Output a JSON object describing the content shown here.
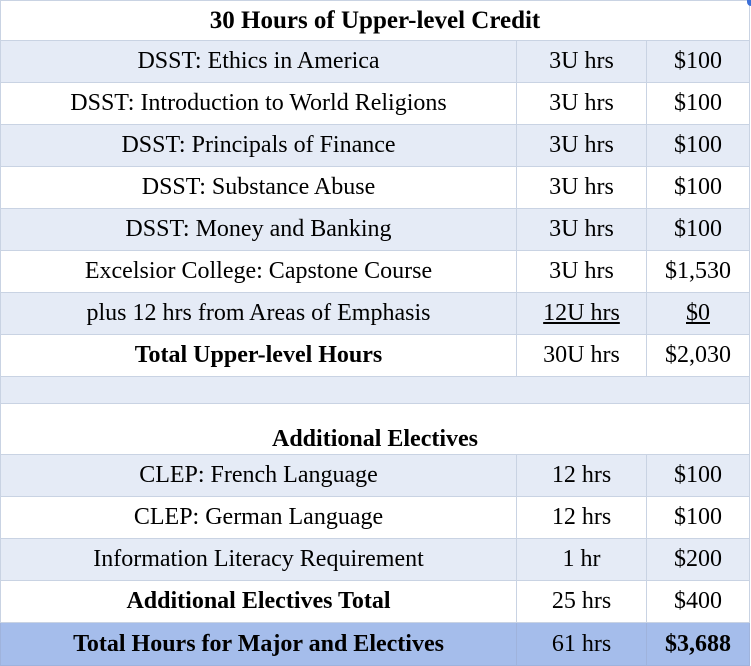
{
  "upper": {
    "title": "30 Hours of Upper-level Credit",
    "rows": [
      {
        "course": "DSST:  Ethics in America",
        "hours": "3U hrs",
        "cost": "$100"
      },
      {
        "course": "DSST:  Introduction to World Religions",
        "hours": "3U hrs",
        "cost": "$100"
      },
      {
        "course": "DSST:  Principals of Finance",
        "hours": "3U hrs",
        "cost": "$100"
      },
      {
        "course": "DSST:  Substance Abuse",
        "hours": "3U hrs",
        "cost": "$100"
      },
      {
        "course": "DSST:  Money and Banking",
        "hours": "3U hrs",
        "cost": "$100"
      },
      {
        "course": "Excelsior College:  Capstone Course",
        "hours": "3U hrs",
        "cost": "$1,530"
      },
      {
        "course": "plus 12 hrs from Areas of Emphasis",
        "hours": "12U hrs",
        "cost": "$0"
      }
    ],
    "total": {
      "label": "Total Upper-level Hours",
      "hours": "30U hrs",
      "cost": "$2,030"
    }
  },
  "electives": {
    "title": "Additional Electives",
    "rows": [
      {
        "course": "CLEP:  French Language",
        "hours": "12 hrs",
        "cost": "$100"
      },
      {
        "course": "CLEP:  German Language",
        "hours": "12 hrs",
        "cost": "$100"
      },
      {
        "course": "Information Literacy Requirement",
        "hours": "1 hr",
        "cost": "$200"
      }
    ],
    "total": {
      "label": "Additional Electives Total",
      "hours": "25 hrs",
      "cost": "$400"
    }
  },
  "grand_total": {
    "label": "Total Hours for Major and Electives",
    "hours": "61 hrs",
    "cost": "$3,688"
  },
  "colors": {
    "row_shade": "#e5ebf6",
    "grand_total_bg": "#a5bdeb",
    "border": "#c9d3e3"
  }
}
